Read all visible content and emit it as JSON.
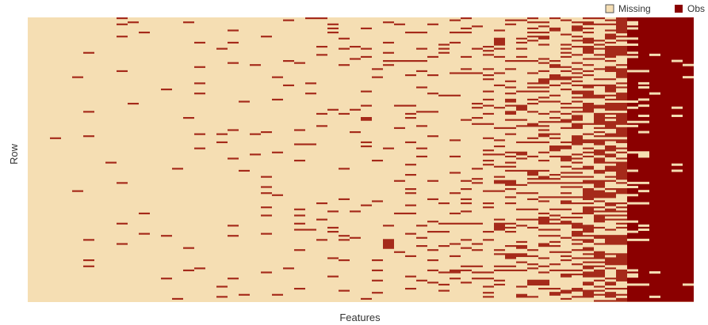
{
  "chart_data": {
    "type": "heatmap",
    "title": "",
    "xlabel": "Features",
    "ylabel": "Row",
    "grid": false,
    "legend_position": "top-right",
    "legend": [
      {
        "label": "Missing",
        "color": "#f5deb3"
      },
      {
        "label": "Obs",
        "color": "#8b0000"
      }
    ],
    "colors": {
      "missing": "#f5deb3",
      "observed": "#8b0000",
      "observed_light": "#a52a1a"
    },
    "n_features": 60,
    "n_rows": 140,
    "observed_fraction_by_feature": [
      0.0,
      0.0,
      0.01,
      0.0,
      0.01,
      0.02,
      0.0,
      0.01,
      0.02,
      0.01,
      0.02,
      0.01,
      0.03,
      0.02,
      0.03,
      0.04,
      0.02,
      0.03,
      0.04,
      0.03,
      0.04,
      0.05,
      0.03,
      0.04,
      0.05,
      0.06,
      0.05,
      0.04,
      0.06,
      0.05,
      0.07,
      0.06,
      0.08,
      0.07,
      0.09,
      0.1,
      0.12,
      0.11,
      0.14,
      0.16,
      0.18,
      0.2,
      0.22,
      0.25,
      0.28,
      0.3,
      0.33,
      0.36,
      0.4,
      0.45,
      0.5,
      0.55,
      0.62,
      0.7,
      0.78,
      0.85,
      0.9,
      0.95,
      0.97,
      0.98
    ]
  }
}
